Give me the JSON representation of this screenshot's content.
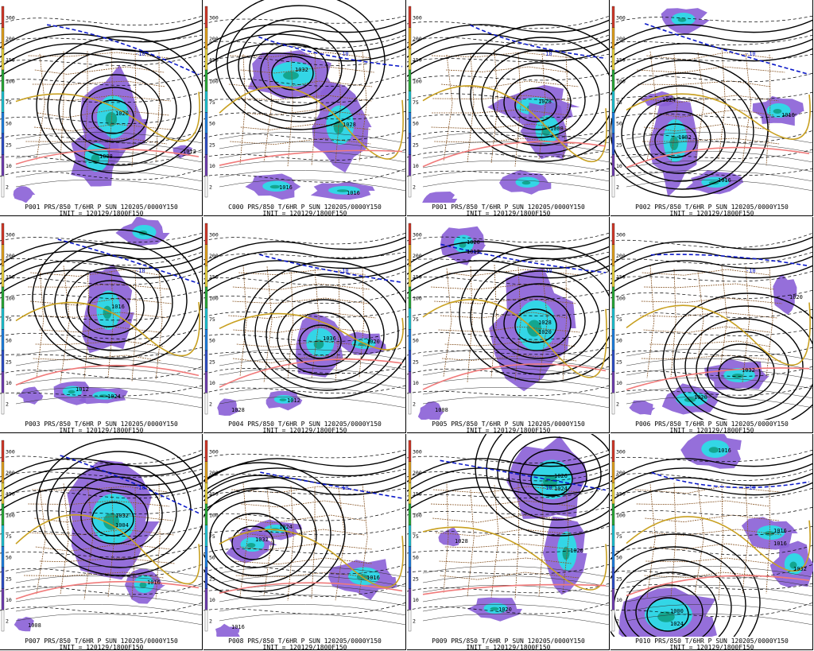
{
  "colors": {
    "precip_light": "#8a5fd6",
    "precip_mid": "#33d6e6",
    "precip_heavy": "#13a68f",
    "isobar": "#000000",
    "thickness": "#000000",
    "freezing": "#0a18c8",
    "temp_warm": "#f07a7a",
    "temp_mid": "#c8a020",
    "borders": "#8b5a2b"
  },
  "colorbar": {
    "labels": [
      "300",
      "200",
      "150",
      "100",
      "75",
      "50",
      "25",
      "10",
      "2"
    ],
    "colors": [
      "#d23a2a",
      "#e0a020",
      "#e6d040",
      "#2aa83a",
      "#20c0d0",
      "#2080e0",
      "#3050c8",
      "#7040b0",
      "#ffffff"
    ]
  },
  "panels": [
    {
      "name": "p001-row1",
      "line1": "P001 PRS/850 T/6HR P SUN 120205/0000Y150",
      "line2": "INIT = 120129/1800F150",
      "center_labels": [
        "1020",
        "1008",
        "1012"
      ],
      "freezing_label": "-10"
    },
    {
      "name": "c000",
      "line1": "C000 PRS/850 T/6HR P SUN 120205/0000Y150",
      "line2": "INIT = 120129/1800F150",
      "center_labels": [
        "1032",
        "1028",
        "1016",
        "1016"
      ],
      "freezing_label": "-10"
    },
    {
      "name": "p001-row1b",
      "line1": "P001 PRS/850 T/6HR P SUN 120205/0000Y150",
      "line2": "INIT = 120129/1800F150",
      "center_labels": [
        "1028",
        "1008"
      ],
      "freezing_label": "-10"
    },
    {
      "name": "p002",
      "line1": "P002 PRS/850 T/6HR P SUN 120205/0000Y150",
      "line2": "INIT = 120129/1800F150",
      "center_labels": [
        "1002",
        "1016",
        "1024",
        "1016"
      ],
      "freezing_label": "-10"
    },
    {
      "name": "p003",
      "line1": "P003 PRS/850 T/6HR P SUN 120205/0000Y150",
      "line2": "INIT = 120129/1800F150",
      "center_labels": [
        "1016",
        "1012",
        "1024"
      ],
      "freezing_label": "-10"
    },
    {
      "name": "p004",
      "line1": "P004 PRS/850 T/6HR P SUN 120205/0000Y150",
      "line2": "INIT = 120129/1800F150",
      "center_labels": [
        "1036",
        "1020",
        "1012",
        "1028"
      ],
      "freezing_label": "-10"
    },
    {
      "name": "p005",
      "line1": "P005 PRS/850 T/6HR P SUN 120205/0000Y150",
      "line2": "INIT = 120129/1800F150",
      "center_labels": [
        "1028",
        "1020",
        "1008",
        "1020",
        "1012"
      ],
      "freezing_label": "-10"
    },
    {
      "name": "p006",
      "line1": "P006 PRS/850 T/6HR P SUN 120205/0000Y150",
      "line2": "INIT = 120129/1800F150",
      "center_labels": [
        "1032",
        "1020",
        "1020"
      ],
      "freezing_label": "-10"
    },
    {
      "name": "p007",
      "line1": "P007 PRS/850 T/6HR P SUN 120205/0000Y150",
      "line2": "INIT = 120129/1800F150",
      "center_labels": [
        "1032",
        "1016",
        "1008",
        "1004"
      ],
      "freezing_label": "-10"
    },
    {
      "name": "p008",
      "line1": "P008 PRS/850 T/6HR P SUN 120205/0000Y150",
      "line2": "INIT = 120129/1800F150",
      "center_labels": [
        "1032",
        "1024",
        "1016",
        "1016"
      ],
      "freezing_label": "-10"
    },
    {
      "name": "p009",
      "line1": "P009 PRS/850 T/6HR P SUN 120205/0000Y150",
      "line2": "INIT = 120129/1800F150",
      "center_labels": [
        "1026",
        "1020",
        "1020",
        "1028",
        "1024"
      ],
      "freezing_label": "-10"
    },
    {
      "name": "p010",
      "line1": "P010 PRS/850 T/6HR P SUN 120205/0000Y150",
      "line2": "INIT = 120129/1800F150",
      "center_labels": [
        "1000",
        "1016",
        "1016",
        "1032",
        "1024",
        "1016"
      ],
      "freezing_label": "-10"
    }
  ]
}
